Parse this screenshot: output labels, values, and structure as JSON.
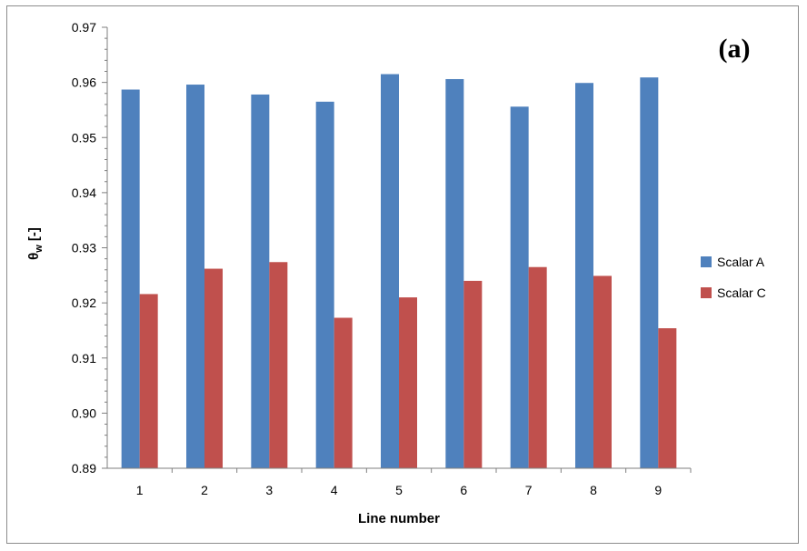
{
  "chart_data": {
    "type": "bar",
    "panel_label": "(a)",
    "xlabel": "Line number",
    "ylabel_main": "θ",
    "ylabel_sub": "w",
    "ylabel_unit": " [-]",
    "categories": [
      "1",
      "2",
      "3",
      "4",
      "5",
      "6",
      "7",
      "8",
      "9"
    ],
    "ylim": [
      0.89,
      0.97
    ],
    "yticks": [
      0.89,
      0.9,
      0.91,
      0.92,
      0.93,
      0.94,
      0.95,
      0.96,
      0.97
    ],
    "ytick_labels": [
      "0.89",
      "0.90",
      "0.91",
      "0.92",
      "0.93",
      "0.94",
      "0.95",
      "0.96",
      "0.97"
    ],
    "series": [
      {
        "name": "Scalar A",
        "color": "#4f81bd",
        "values": [
          0.9587,
          0.9596,
          0.9578,
          0.9565,
          0.9615,
          0.9606,
          0.9556,
          0.9599,
          0.9609
        ]
      },
      {
        "name": "Scalar C",
        "color": "#c0504d",
        "values": [
          0.9216,
          0.9262,
          0.9274,
          0.9173,
          0.921,
          0.924,
          0.9265,
          0.9249,
          0.9154
        ]
      }
    ],
    "legend_position": "right",
    "grid": false
  }
}
